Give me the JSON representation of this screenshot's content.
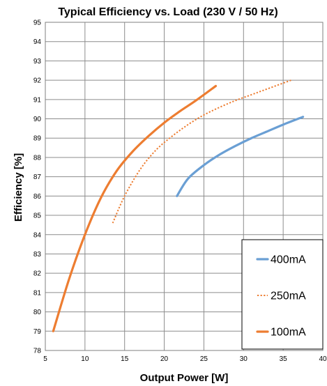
{
  "chart_data": {
    "type": "line",
    "title": "Typical Efficiency vs. Load (230 V / 50 Hz)",
    "xlabel": "Output Power [W]",
    "ylabel": "Efficiency [%]",
    "xlim": [
      5,
      40
    ],
    "ylim": [
      78,
      95
    ],
    "xticks": [
      5,
      10,
      15,
      20,
      25,
      30,
      35,
      40
    ],
    "yticks": [
      78,
      79,
      80,
      81,
      82,
      83,
      84,
      85,
      86,
      87,
      88,
      89,
      90,
      91,
      92,
      93,
      94,
      95
    ],
    "grid": true,
    "legend_position": "bottom-right",
    "series": [
      {
        "name": "400mA",
        "color": "#6a9fd4",
        "style": "solid",
        "x": [
          21.6,
          23,
          25,
          27,
          29,
          31,
          33,
          35,
          37.5
        ],
        "y": [
          86.0,
          86.9,
          87.6,
          88.15,
          88.6,
          89.0,
          89.35,
          89.7,
          90.1
        ]
      },
      {
        "name": "250mA",
        "color": "#ed7d31",
        "style": "dotted",
        "x": [
          13.5,
          15,
          17,
          19,
          21,
          23,
          25,
          27,
          29,
          31,
          33,
          36
        ],
        "y": [
          84.6,
          86.0,
          87.4,
          88.4,
          89.1,
          89.7,
          90.2,
          90.6,
          90.95,
          91.25,
          91.55,
          92.0
        ]
      },
      {
        "name": "100mA",
        "color": "#ed7d31",
        "style": "solid",
        "x": [
          6,
          8,
          10,
          12,
          14,
          16,
          18,
          20,
          22,
          24,
          26.5
        ],
        "y": [
          79.0,
          81.7,
          84.0,
          85.9,
          87.3,
          88.3,
          89.1,
          89.8,
          90.4,
          90.95,
          91.7
        ]
      }
    ]
  }
}
